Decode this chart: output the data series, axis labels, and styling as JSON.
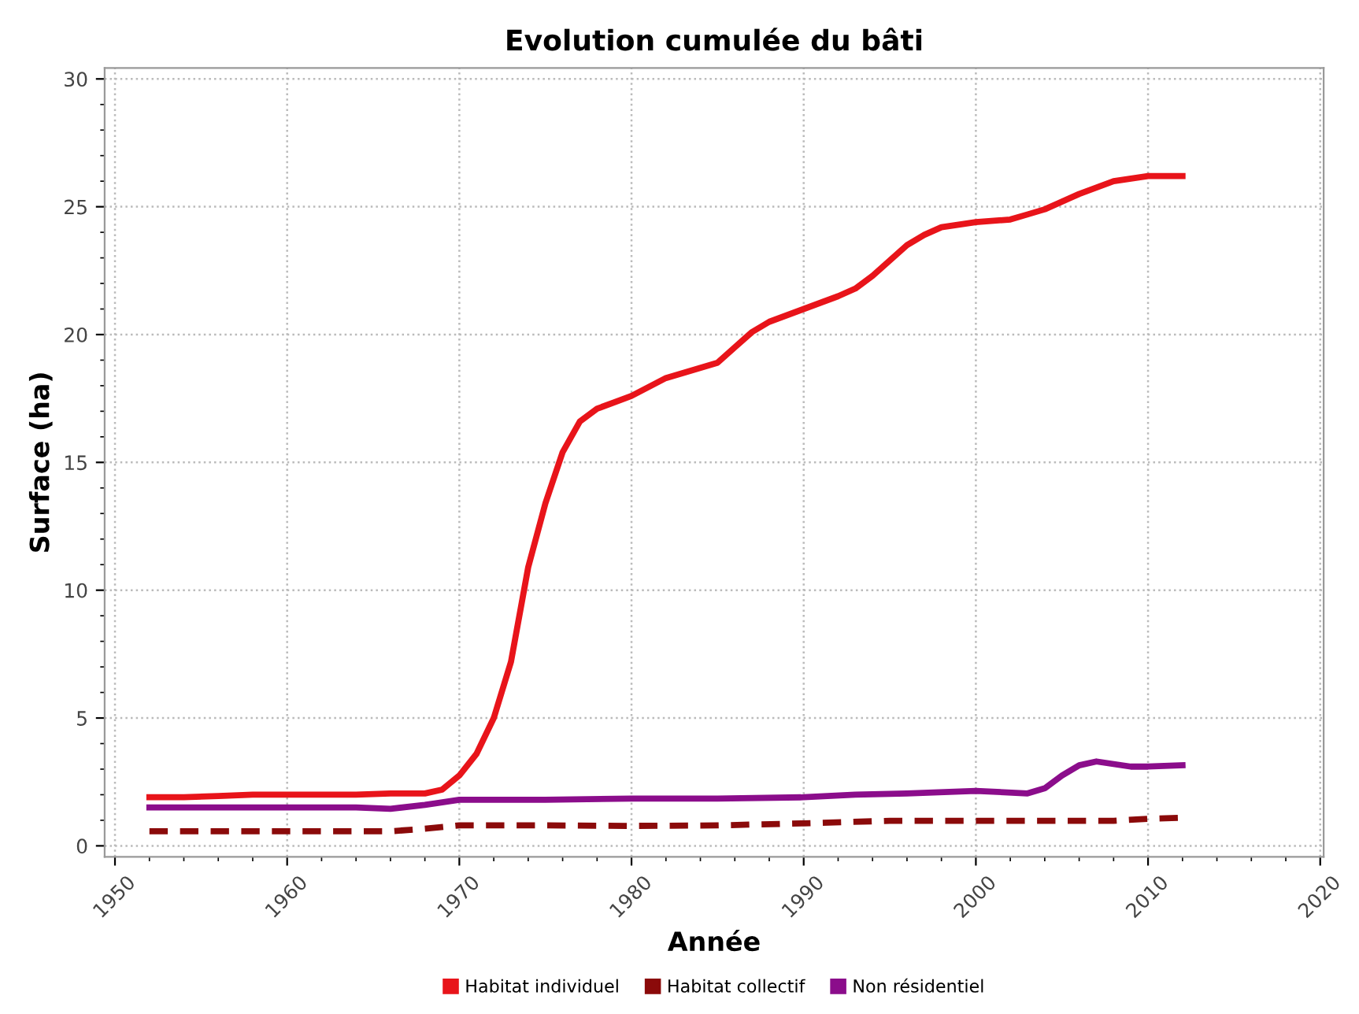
{
  "chart_data": {
    "type": "line",
    "title": "Evolution cumulée du bâti",
    "xlabel": "Année",
    "ylabel": "Surface (ha)",
    "xlim": [
      1949.4,
      2020.2
    ],
    "ylim": [
      -0.43,
      30.43
    ],
    "xticks": [
      1950,
      1960,
      1970,
      1980,
      1990,
      2000,
      2010,
      2020,
      {
        "value": 1952,
        "label": null
      },
      {
        "value": 1954,
        "label": null
      },
      {
        "value": 1956,
        "label": null
      },
      {
        "value": 1958,
        "label": null
      },
      {
        "value": 1962,
        "label": null
      },
      {
        "value": 1964,
        "label": null
      },
      {
        "value": 1966,
        "label": null
      },
      {
        "value": 1968,
        "label": null
      },
      {
        "value": 1972,
        "label": null
      },
      {
        "value": 1974,
        "label": null
      },
      {
        "value": 1976,
        "label": null
      },
      {
        "value": 1978,
        "label": null
      },
      {
        "value": 1982,
        "label": null
      },
      {
        "value": 1984,
        "label": null
      },
      {
        "value": 1986,
        "label": null
      },
      {
        "value": 1988,
        "label": null
      },
      {
        "value": 1992,
        "label": null
      },
      {
        "value": 1994,
        "label": null
      },
      {
        "value": 1996,
        "label": null
      },
      {
        "value": 1998,
        "label": null
      },
      {
        "value": 2002,
        "label": null
      },
      {
        "value": 2004,
        "label": null
      },
      {
        "value": 2006,
        "label": null
      },
      {
        "value": 2008,
        "label": null
      },
      {
        "value": 2012,
        "label": null
      },
      {
        "value": 2014,
        "label": null
      },
      {
        "value": 2016,
        "label": null
      },
      {
        "value": 2018,
        "label": null
      }
    ],
    "yticks": [
      0,
      5,
      10,
      15,
      20,
      25,
      30,
      {
        "value": 1,
        "label": null
      },
      {
        "value": 2,
        "label": null
      },
      {
        "value": 3,
        "label": null
      },
      {
        "value": 4,
        "label": null
      },
      {
        "value": 6,
        "label": null
      },
      {
        "value": 7,
        "label": null
      },
      {
        "value": 8,
        "label": null
      },
      {
        "value": 9,
        "label": null
      },
      {
        "value": 11,
        "label": null
      },
      {
        "value": 12,
        "label": null
      },
      {
        "value": 13,
        "label": null
      },
      {
        "value": 14,
        "label": null
      },
      {
        "value": 16,
        "label": null
      },
      {
        "value": 17,
        "label": null
      },
      {
        "value": 18,
        "label": null
      },
      {
        "value": 19,
        "label": null
      },
      {
        "value": 21,
        "label": null
      },
      {
        "value": 22,
        "label": null
      },
      {
        "value": 23,
        "label": null
      },
      {
        "value": 24,
        "label": null
      },
      {
        "value": 26,
        "label": null
      },
      {
        "value": 27,
        "label": null
      },
      {
        "value": 28,
        "label": null
      },
      {
        "value": 29,
        "label": null
      }
    ],
    "grid": true,
    "legend": "bottom",
    "marker": "none",
    "series": [
      {
        "name": "Habitat individuel",
        "color": "#e8141a",
        "line_style": "solid",
        "x": [
          1952,
          1954,
          1956,
          1958,
          1960,
          1962,
          1964,
          1966,
          1968,
          1969,
          1970,
          1971,
          1972,
          1973,
          1974,
          1975,
          1976,
          1977,
          1978,
          1980,
          1982,
          1984,
          1985,
          1986,
          1987,
          1988,
          1990,
          1992,
          1993,
          1994,
          1995,
          1996,
          1997,
          1998,
          2000,
          2002,
          2003,
          2004,
          2006,
          2008,
          2010,
          2012
        ],
        "values": [
          1.9,
          1.9,
          1.95,
          2.0,
          2.0,
          2.0,
          2.0,
          2.05,
          2.05,
          2.2,
          2.75,
          3.6,
          5.0,
          7.2,
          10.9,
          13.4,
          15.4,
          16.6,
          17.1,
          17.6,
          18.3,
          18.7,
          18.9,
          19.5,
          20.1,
          20.5,
          21.0,
          21.5,
          21.8,
          22.3,
          22.9,
          23.5,
          23.9,
          24.2,
          24.4,
          24.5,
          24.7,
          24.9,
          25.5,
          26.0,
          26.2,
          26.2
        ]
      },
      {
        "name": "Habitat collectif",
        "color": "#8b0a0a",
        "line_style": "dashed",
        "x": [
          1952,
          1960,
          1966,
          1968,
          1970,
          1975,
          1980,
          1985,
          1990,
          1995,
          2000,
          2005,
          2008,
          2010,
          2012
        ],
        "values": [
          0.57,
          0.57,
          0.57,
          0.67,
          0.8,
          0.8,
          0.78,
          0.8,
          0.88,
          0.98,
          0.98,
          0.98,
          0.98,
          1.06,
          1.1
        ]
      },
      {
        "name": "Non résidentiel",
        "color": "#8b0d8b",
        "line_style": "solid",
        "x": [
          1952,
          1956,
          1960,
          1964,
          1966,
          1968,
          1970,
          1975,
          1980,
          1985,
          1990,
          1993,
          1996,
          2000,
          2003,
          2004,
          2005,
          2006,
          2007,
          2008,
          2009,
          2010,
          2012
        ],
        "values": [
          1.5,
          1.5,
          1.5,
          1.5,
          1.45,
          1.6,
          1.8,
          1.8,
          1.85,
          1.85,
          1.9,
          2.0,
          2.05,
          2.15,
          2.05,
          2.25,
          2.75,
          3.15,
          3.3,
          3.2,
          3.1,
          3.1,
          3.15
        ]
      }
    ]
  }
}
